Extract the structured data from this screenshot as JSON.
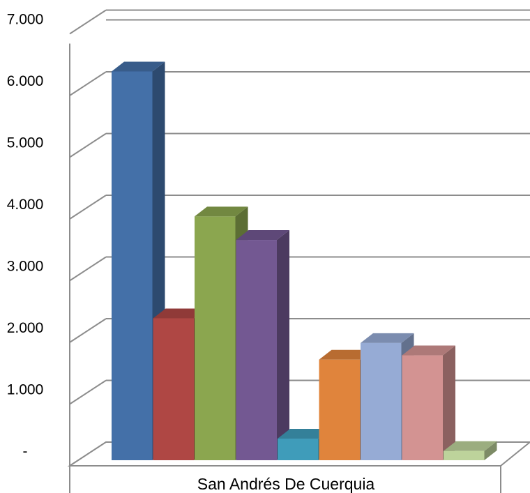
{
  "chart_data": {
    "type": "bar",
    "title": "",
    "xlabel": "",
    "ylabel": "",
    "categories": [
      "San Andrés De Cuerquia"
    ],
    "ylim": [
      0,
      7000
    ],
    "yticks": [
      {
        "value": 0,
        "label": "-"
      },
      {
        "value": 1000,
        "label": "1.000"
      },
      {
        "value": 2000,
        "label": "2.000"
      },
      {
        "value": 3000,
        "label": "3.000"
      },
      {
        "value": 4000,
        "label": "4.000"
      },
      {
        "value": 5000,
        "label": "5.000"
      },
      {
        "value": 6000,
        "label": "6.000"
      },
      {
        "value": 7000,
        "label": "7.000"
      }
    ],
    "grid": true,
    "legend": "none",
    "style": "3d-clustered-column",
    "series": [
      {
        "values": [
          6300
        ],
        "color": "#4470A8"
      },
      {
        "values": [
          2300
        ],
        "color": "#AF4744"
      },
      {
        "values": [
          3950
        ],
        "color": "#8BA64F"
      },
      {
        "values": [
          3570
        ],
        "color": "#735892"
      },
      {
        "values": [
          350
        ],
        "color": "#3F9CBA"
      },
      {
        "values": [
          1630
        ],
        "color": "#E0843C"
      },
      {
        "values": [
          1900
        ],
        "color": "#96ABD5"
      },
      {
        "values": [
          1700
        ],
        "color": "#D39392"
      },
      {
        "values": [
          150
        ],
        "color": "#BDD39B"
      }
    ]
  }
}
